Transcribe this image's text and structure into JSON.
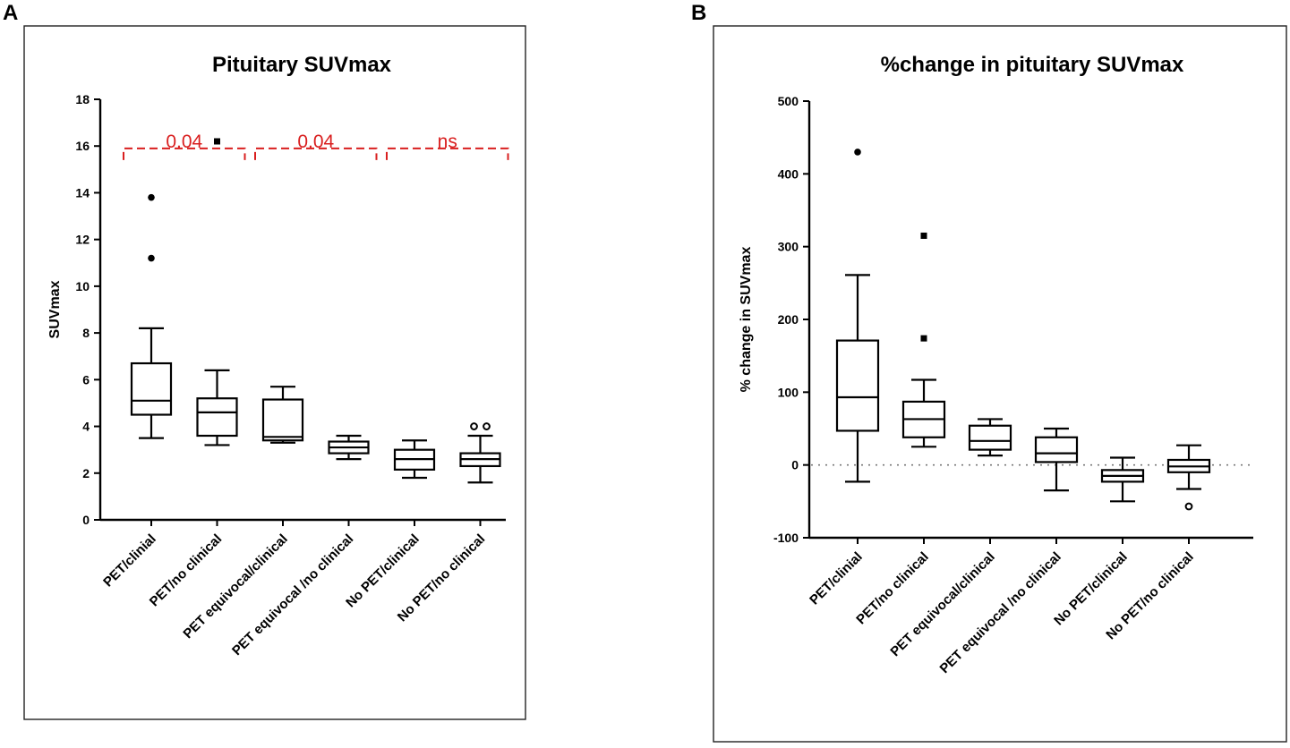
{
  "panels": {
    "a": {
      "letter": "A",
      "chart_data": {
        "type": "box",
        "title": "Pituitary SUVmax",
        "xlabel": "",
        "ylabel": "SUVmax",
        "ylim": [
          0,
          18
        ],
        "yticks": [
          0,
          2,
          4,
          6,
          8,
          10,
          12,
          14,
          16,
          18
        ],
        "categories": [
          "PET/clinial",
          "PET/no clinical",
          "PET equivocal/clinical",
          "PET equivocal /no clinical",
          "No PET/clinical",
          "No PET/no clinical"
        ],
        "boxes": [
          {
            "min": 3.5,
            "q1": 4.5,
            "median": 5.1,
            "q3": 6.7,
            "max": 8.2,
            "outliers": [
              {
                "value": 11.2,
                "shape": "dot"
              },
              {
                "value": 13.8,
                "shape": "dot"
              }
            ]
          },
          {
            "min": 3.2,
            "q1": 3.6,
            "median": 4.6,
            "q3": 5.2,
            "max": 6.4,
            "outliers": [
              {
                "value": 16.2,
                "shape": "square"
              }
            ]
          },
          {
            "min": 3.3,
            "q1": 3.4,
            "median": 3.55,
            "q3": 5.15,
            "max": 5.7,
            "outliers": []
          },
          {
            "min": 2.6,
            "q1": 2.85,
            "median": 3.1,
            "q3": 3.35,
            "max": 3.6,
            "outliers": []
          },
          {
            "min": 1.8,
            "q1": 2.15,
            "median": 2.6,
            "q3": 3.0,
            "max": 3.4,
            "outliers": []
          },
          {
            "min": 1.6,
            "q1": 2.3,
            "median": 2.6,
            "q3": 2.85,
            "max": 3.6,
            "outliers": [
              {
                "value": 4.0,
                "shape": "ring",
                "offset": -1
              },
              {
                "value": 4.0,
                "shape": "ring",
                "offset": 1
              }
            ]
          }
        ],
        "comparisons": [
          {
            "from": 0,
            "to": 1,
            "label": "0.04",
            "y": 15.9
          },
          {
            "from": 2,
            "to": 3,
            "label": "0.04",
            "y": 15.9
          },
          {
            "from": 4,
            "to": 5,
            "label": "ns",
            "y": 15.9
          }
        ]
      }
    },
    "b": {
      "letter": "B",
      "chart_data": {
        "type": "box",
        "title": "%change in pituitary SUVmax",
        "xlabel": "",
        "ylabel": "% change in SUVmax",
        "ylim": [
          -100,
          500
        ],
        "yticks": [
          -100,
          0,
          100,
          200,
          300,
          400,
          500
        ],
        "reference_line": 0,
        "categories": [
          "PET/clinial",
          "PET/no clinical",
          "PET equivocal/clinical",
          "PET equivocal /no clinical",
          "No PET/clinical",
          "No PET/no clinical"
        ],
        "boxes": [
          {
            "min": -23,
            "q1": 47,
            "median": 93,
            "q3": 171,
            "max": 261,
            "outliers": [
              {
                "value": 430,
                "shape": "dot"
              }
            ]
          },
          {
            "min": 25,
            "q1": 38,
            "median": 63,
            "q3": 87,
            "max": 117,
            "outliers": [
              {
                "value": 174,
                "shape": "square"
              },
              {
                "value": 315,
                "shape": "square"
              }
            ]
          },
          {
            "min": 13,
            "q1": 21,
            "median": 33,
            "q3": 54,
            "max": 63,
            "outliers": []
          },
          {
            "min": -35,
            "q1": 4,
            "median": 16,
            "q3": 38,
            "max": 50,
            "outliers": []
          },
          {
            "min": -50,
            "q1": -23,
            "median": -15,
            "q3": -7,
            "max": 10,
            "outliers": []
          },
          {
            "min": -33,
            "q1": -10,
            "median": -2,
            "q3": 7,
            "max": 27,
            "outliers": [
              {
                "value": -57,
                "shape": "ring"
              }
            ]
          }
        ]
      }
    }
  }
}
